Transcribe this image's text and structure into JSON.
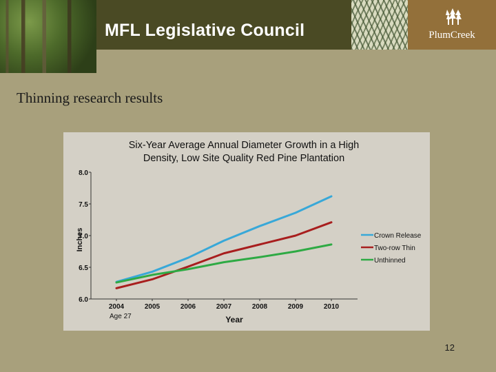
{
  "header": {
    "title": "MFL Legislative Council",
    "logo_text": "PlumCreek",
    "logo_icon": "tree-icon"
  },
  "slide": {
    "subtitle": "Thinning research results",
    "page_number": "12"
  },
  "colors": {
    "title_bar": "#4a4a24",
    "logo_box": "#93703a",
    "background": "#a8a07c",
    "chart_bg": "#d4d0c6"
  },
  "chart_data": {
    "type": "line",
    "title_line1": "Six-Year Average Annual Diameter Growth in a High",
    "title_line2": "Density, Low Site Quality Red Pine Plantation",
    "ylabel": "Inches",
    "xlabel": "Year",
    "x_note": "Age  27",
    "categories": [
      "2004",
      "2005",
      "2006",
      "2007",
      "2008",
      "2009",
      "2010"
    ],
    "ylim": [
      6.0,
      8.0
    ],
    "yticks": [
      "6.0",
      "6.5",
      "7.0",
      "7.5",
      "8.0"
    ],
    "series": [
      {
        "name": "Crown Release",
        "color": "#38a8d8",
        "values": [
          6.27,
          6.43,
          6.65,
          6.92,
          7.15,
          7.36,
          7.62
        ]
      },
      {
        "name": "Two-row Thin",
        "color": "#a81e1e",
        "values": [
          6.17,
          6.31,
          6.51,
          6.72,
          6.86,
          7.0,
          7.21
        ]
      },
      {
        "name": "Unthinned",
        "color": "#2eaa44",
        "values": [
          6.26,
          6.38,
          6.47,
          6.58,
          6.66,
          6.75,
          6.86
        ]
      }
    ],
    "legend": "right",
    "grid": false
  }
}
